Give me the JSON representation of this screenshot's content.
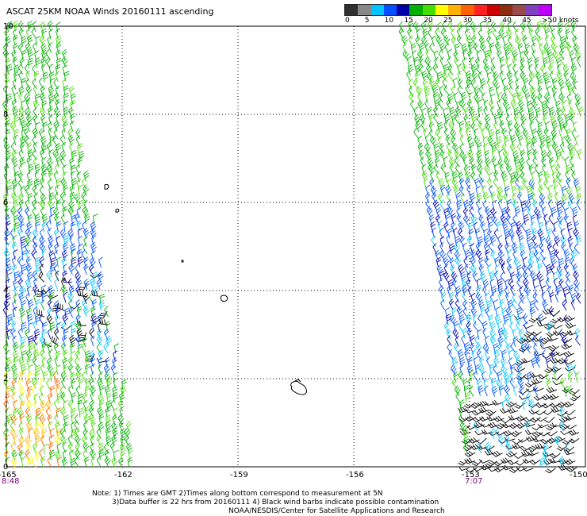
{
  "title": "ASCAT 25KM NOAA Winds 20160111 ascending",
  "colorbar": {
    "colors": [
      "#303030",
      "#888888",
      "#00c4ff",
      "#0050ff",
      "#0000aa",
      "#00b000",
      "#44dd00",
      "#ffff00",
      "#ffb000",
      "#ff6000",
      "#ff2020",
      "#cc0000",
      "#8b2f10",
      "#9a4a4a",
      "#8040c0",
      "#c000ff"
    ],
    "labels": [
      "0",
      "5",
      "10",
      "15",
      "20",
      "25",
      "30",
      "35",
      "40",
      "45",
      ">50 knots"
    ],
    "label_steps": [
      0,
      5,
      10,
      15,
      20,
      25,
      30,
      35,
      40,
      45,
      50
    ]
  },
  "legend_scale": {
    "min": 0,
    "max": 50,
    "unit": "knots"
  },
  "latitude_ticks": [
    "10",
    "8",
    "6",
    "4",
    "2",
    "0"
  ],
  "lat_values": [
    10,
    8,
    6,
    4,
    2,
    0
  ],
  "longitude_ticks": [
    "-165",
    "-162",
    "-159",
    "-156",
    "-153",
    "-150"
  ],
  "lon_values": [
    -165,
    -162,
    -159,
    -156,
    -153,
    -150
  ],
  "times": [
    {
      "label": "8:48",
      "lon": -165
    },
    {
      "label": "7:07",
      "lon": -153
    }
  ],
  "notes": [
    "Note: 1) Times are GMT 2)Times along bottom correspond to measurement at 5N",
    "3)Data buffer is 22 hrs from 20160111 4) Black wind barbs indicate possible contamination",
    "NOAA/NESDIS/Center for Satellite Applications and Research"
  ]
}
